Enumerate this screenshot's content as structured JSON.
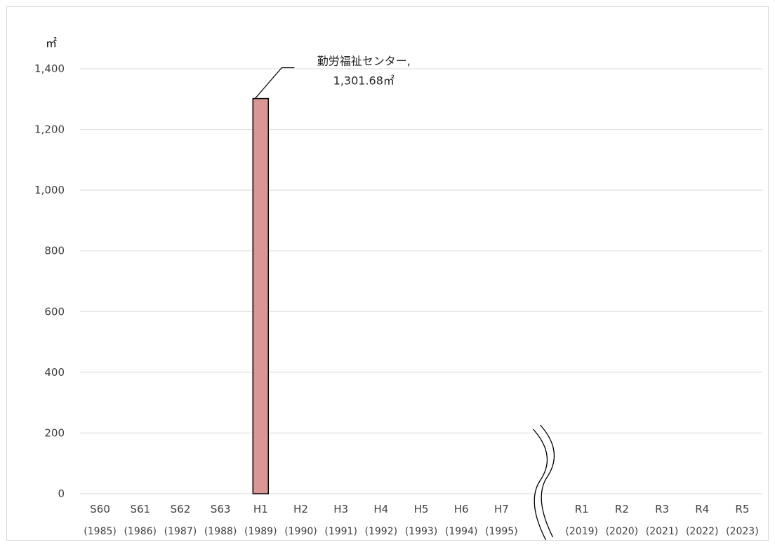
{
  "chart_data": {
    "type": "bar",
    "unit": "㎡",
    "ylim": [
      0,
      1400
    ],
    "yticks": [
      "0",
      "200",
      "400",
      "600",
      "800",
      "1,000",
      "1,200",
      "1,400"
    ],
    "categories": [
      {
        "label": "S60",
        "year": "(1985)",
        "value": null
      },
      {
        "label": "S61",
        "year": "(1986)",
        "value": null
      },
      {
        "label": "S62",
        "year": "(1987)",
        "value": null
      },
      {
        "label": "S63",
        "year": "(1988)",
        "value": null
      },
      {
        "label": "H1",
        "year": "(1989)",
        "value": 1301.68
      },
      {
        "label": "H2",
        "year": "(1990)",
        "value": null
      },
      {
        "label": "H3",
        "year": "(1991)",
        "value": null
      },
      {
        "label": "H4",
        "year": "(1992)",
        "value": null
      },
      {
        "label": "H5",
        "year": "(1993)",
        "value": null
      },
      {
        "label": "H6",
        "year": "(1994)",
        "value": null
      },
      {
        "label": "H7",
        "year": "(1995)",
        "value": null
      },
      {
        "label": "",
        "year": "",
        "value": null,
        "axis_break": true
      },
      {
        "label": "R1",
        "year": "(2019)",
        "value": null
      },
      {
        "label": "R2",
        "year": "(2020)",
        "value": null
      },
      {
        "label": "R3",
        "year": "(2021)",
        "value": null
      },
      {
        "label": "R4",
        "year": "(2022)",
        "value": null
      },
      {
        "label": "R5",
        "year": "(2023)",
        "value": null
      }
    ],
    "annotation": {
      "category_index": 4,
      "line1": "勤労福祉センター,",
      "line2": "1,301.68㎡"
    },
    "grid": true,
    "colors": {
      "bar": "#d99694",
      "bar_border": "#000000",
      "grid": "#d9d9d9"
    }
  }
}
